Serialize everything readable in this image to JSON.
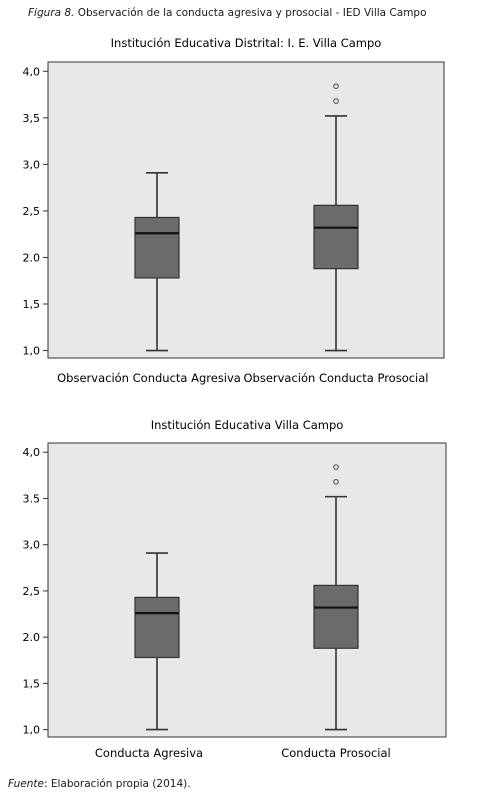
{
  "caption": {
    "figure_label": "Figura 8.",
    "text": "Observación de la conducta agresiva y prosocial - IED Villa Campo"
  },
  "source": {
    "label": "Fuente",
    "text": ": Elaboración propia (2014)."
  },
  "chart_data": [
    {
      "type": "box",
      "title": "Institución Educativa Distrital: I. E. Villa Campo",
      "ylim": [
        0.92,
        4.1
      ],
      "yticks": [
        "1,0",
        "1,5",
        "2.0",
        "2,5",
        "3,0",
        "3,5",
        "4,0"
      ],
      "ytick_values": [
        1.0,
        1.5,
        2.0,
        2.5,
        3.0,
        3.5,
        4.0
      ],
      "categories": [
        "Observación Conducta Agresiva",
        "Observación Conducta Prosocial"
      ],
      "boxes": [
        {
          "whisker_low": 1.0,
          "q1": 1.78,
          "median": 2.26,
          "q3": 2.43,
          "whisker_high": 2.91,
          "outliers": []
        },
        {
          "whisker_low": 1.0,
          "q1": 1.88,
          "median": 2.32,
          "q3": 2.56,
          "whisker_high": 3.52,
          "outliers": [
            3.68,
            3.84
          ]
        }
      ]
    },
    {
      "type": "box",
      "title": "Institución Educativa Villa Campo",
      "ylim": [
        0.92,
        4.1
      ],
      "yticks": [
        "1,0",
        "1,5",
        "2.0",
        "2,5",
        "3,0",
        "3.5",
        "4,0"
      ],
      "ytick_values": [
        1.0,
        1.5,
        2.0,
        2.5,
        3.0,
        3.5,
        4.0
      ],
      "categories": [
        "Conducta Agresiva",
        "Conducta Prosocial"
      ],
      "boxes": [
        {
          "whisker_low": 1.0,
          "q1": 1.78,
          "median": 2.26,
          "q3": 2.43,
          "whisker_high": 2.91,
          "outliers": []
        },
        {
          "whisker_low": 1.0,
          "q1": 1.88,
          "median": 2.32,
          "q3": 2.56,
          "whisker_high": 3.52,
          "outliers": [
            3.68,
            3.84
          ]
        }
      ]
    }
  ],
  "colors": {
    "plot_bg": "#e8e8e8",
    "box_fill": "#6b6b6b",
    "stroke": "#333333",
    "median": "#111111"
  }
}
